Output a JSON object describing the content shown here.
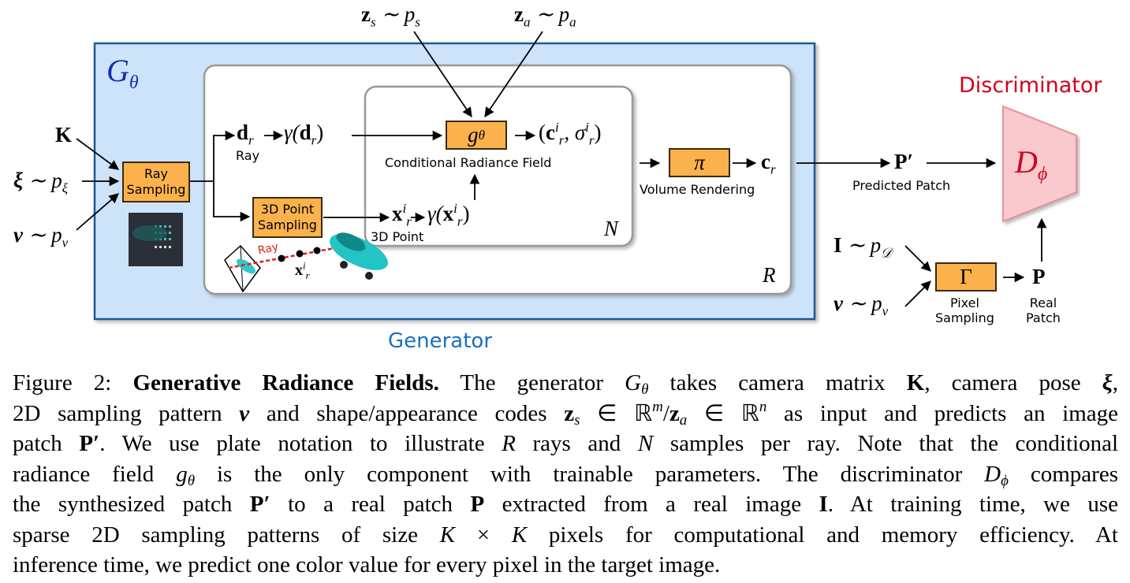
{
  "figure": {
    "generator_symbol": {
      "main": "G",
      "sub": "θ"
    },
    "generator_label": "Generator",
    "discriminator_label": "Discriminator",
    "discriminator_symbol": {
      "main": "D",
      "sub": "ϕ"
    },
    "inputs": {
      "zs": {
        "main": "z",
        "sub": "s",
        "rest": " ∼ p",
        "rest_sub": "s"
      },
      "za": {
        "main": "z",
        "sub": "a",
        "rest": " ∼ p",
        "rest_sub": "a"
      },
      "K": "K",
      "xi": {
        "main": "ξ",
        "rest": " ∼ p",
        "rest_sub": "ξ"
      },
      "nu": {
        "main": "ν",
        "rest": " ∼ p",
        "rest_sub": "ν"
      },
      "I": {
        "main": "I",
        "rest": " ∼ p",
        "rest_sub": "𝒟"
      },
      "nu2": {
        "main": "ν",
        "rest": " ∼ p",
        "rest_sub": "ν"
      }
    },
    "boxes": {
      "ray_sampling": [
        "Ray",
        "Sampling"
      ],
      "point_sampling": [
        "3D Point",
        "Sampling"
      ],
      "g_theta": {
        "main": "g",
        "sub": "θ"
      },
      "pi": "π",
      "gamma": "Γ"
    },
    "labels": {
      "ray": "Ray",
      "ray_red": "Ray",
      "conditional_radiance_field": "Conditional Radiance Field",
      "point_3d": "3D Point",
      "volume_rendering": "Volume Rendering",
      "predicted_patch": "Predicted Patch",
      "pixel_sampling": [
        "Pixel",
        "Sampling"
      ],
      "real_patch": [
        "Real",
        "Patch"
      ],
      "plate_N": "N",
      "plate_R": "R"
    },
    "math": {
      "d_r": {
        "main": "d",
        "sub": "r"
      },
      "gamma_d": {
        "pre": "γ(",
        "main": "d",
        "sub": "r",
        "post": ")"
      },
      "c_sigma": {
        "pre": "(",
        "c": "c",
        "sigma": ", σ",
        "sup": "i",
        "sub": "r",
        "post": ")"
      },
      "x_r": {
        "main": "x",
        "sup": "i",
        "sub": "r"
      },
      "gamma_x": {
        "pre": "γ(",
        "main": "x",
        "sup": "i",
        "sub": "r",
        "post": ")"
      },
      "c_r": {
        "main": "c",
        "sub": "r"
      },
      "P_prime": "P′",
      "P": "P"
    },
    "colors": {
      "generator_fill": "#cde3fa",
      "generator_stroke": "#1e5a96",
      "box_fill": "#fbb24c",
      "discriminator_fill": "#f9c9cd",
      "discriminator_text": "#d0021b",
      "generator_text": "#1a6fc0"
    }
  },
  "caption": {
    "lines": [
      [
        {
          "t": "Figure 2: ",
          "s": "n"
        },
        {
          "t": "Generative Radiance Fields.",
          "s": "b"
        },
        {
          "t": " The generator ",
          "s": "n"
        },
        {
          "t": "G",
          "s": "i"
        },
        {
          "t": "θ",
          "s": "sub"
        },
        {
          "t": " takes camera matrix ",
          "s": "n"
        },
        {
          "t": "K",
          "s": "b"
        },
        {
          "t": ", camera pose ",
          "s": "n"
        },
        {
          "t": "ξ",
          "s": "bi"
        },
        {
          "t": ",",
          "s": "n"
        }
      ],
      [
        {
          "t": "2D sampling pattern ",
          "s": "n"
        },
        {
          "t": "ν",
          "s": "bi"
        },
        {
          "t": " and shape/appearance codes ",
          "s": "n"
        },
        {
          "t": "z",
          "s": "b"
        },
        {
          "t": "s",
          "s": "sub"
        },
        {
          "t": " ∈ ℝ",
          "s": "n"
        },
        {
          "t": "m",
          "s": "sup"
        },
        {
          "t": "/",
          "s": "n"
        },
        {
          "t": "z",
          "s": "b"
        },
        {
          "t": "a",
          "s": "sub"
        },
        {
          "t": " ∈ ℝ",
          "s": "n"
        },
        {
          "t": "n",
          "s": "sup"
        },
        {
          "t": " as input and predicts an image",
          "s": "n"
        }
      ],
      [
        {
          "t": "patch ",
          "s": "n"
        },
        {
          "t": "P′",
          "s": "b"
        },
        {
          "t": ". We use plate notation to illustrate ",
          "s": "n"
        },
        {
          "t": "R",
          "s": "i"
        },
        {
          "t": " rays and ",
          "s": "n"
        },
        {
          "t": "N",
          "s": "i"
        },
        {
          "t": " samples per ray. Note that the conditional",
          "s": "n"
        }
      ],
      [
        {
          "t": "radiance field ",
          "s": "n"
        },
        {
          "t": "g",
          "s": "i"
        },
        {
          "t": "θ",
          "s": "sub"
        },
        {
          "t": " is the only component with trainable parameters. The discriminator ",
          "s": "n"
        },
        {
          "t": "D",
          "s": "i"
        },
        {
          "t": "ϕ",
          "s": "sub"
        },
        {
          "t": " compares",
          "s": "n"
        }
      ],
      [
        {
          "t": "the synthesized patch ",
          "s": "n"
        },
        {
          "t": "P′",
          "s": "b"
        },
        {
          "t": " to a real patch ",
          "s": "n"
        },
        {
          "t": "P",
          "s": "b"
        },
        {
          "t": " extracted from a real image ",
          "s": "n"
        },
        {
          "t": "I",
          "s": "b"
        },
        {
          "t": ". At training time, we use",
          "s": "n"
        }
      ],
      [
        {
          "t": "sparse 2D sampling patterns of size ",
          "s": "n"
        },
        {
          "t": "K",
          "s": "i"
        },
        {
          "t": " × ",
          "s": "n"
        },
        {
          "t": "K",
          "s": "i"
        },
        {
          "t": " pixels for computational and memory efficiency. At",
          "s": "n"
        }
      ],
      [
        {
          "t": "inference time, we predict one color value for every pixel in the target image.",
          "s": "n"
        }
      ]
    ]
  }
}
